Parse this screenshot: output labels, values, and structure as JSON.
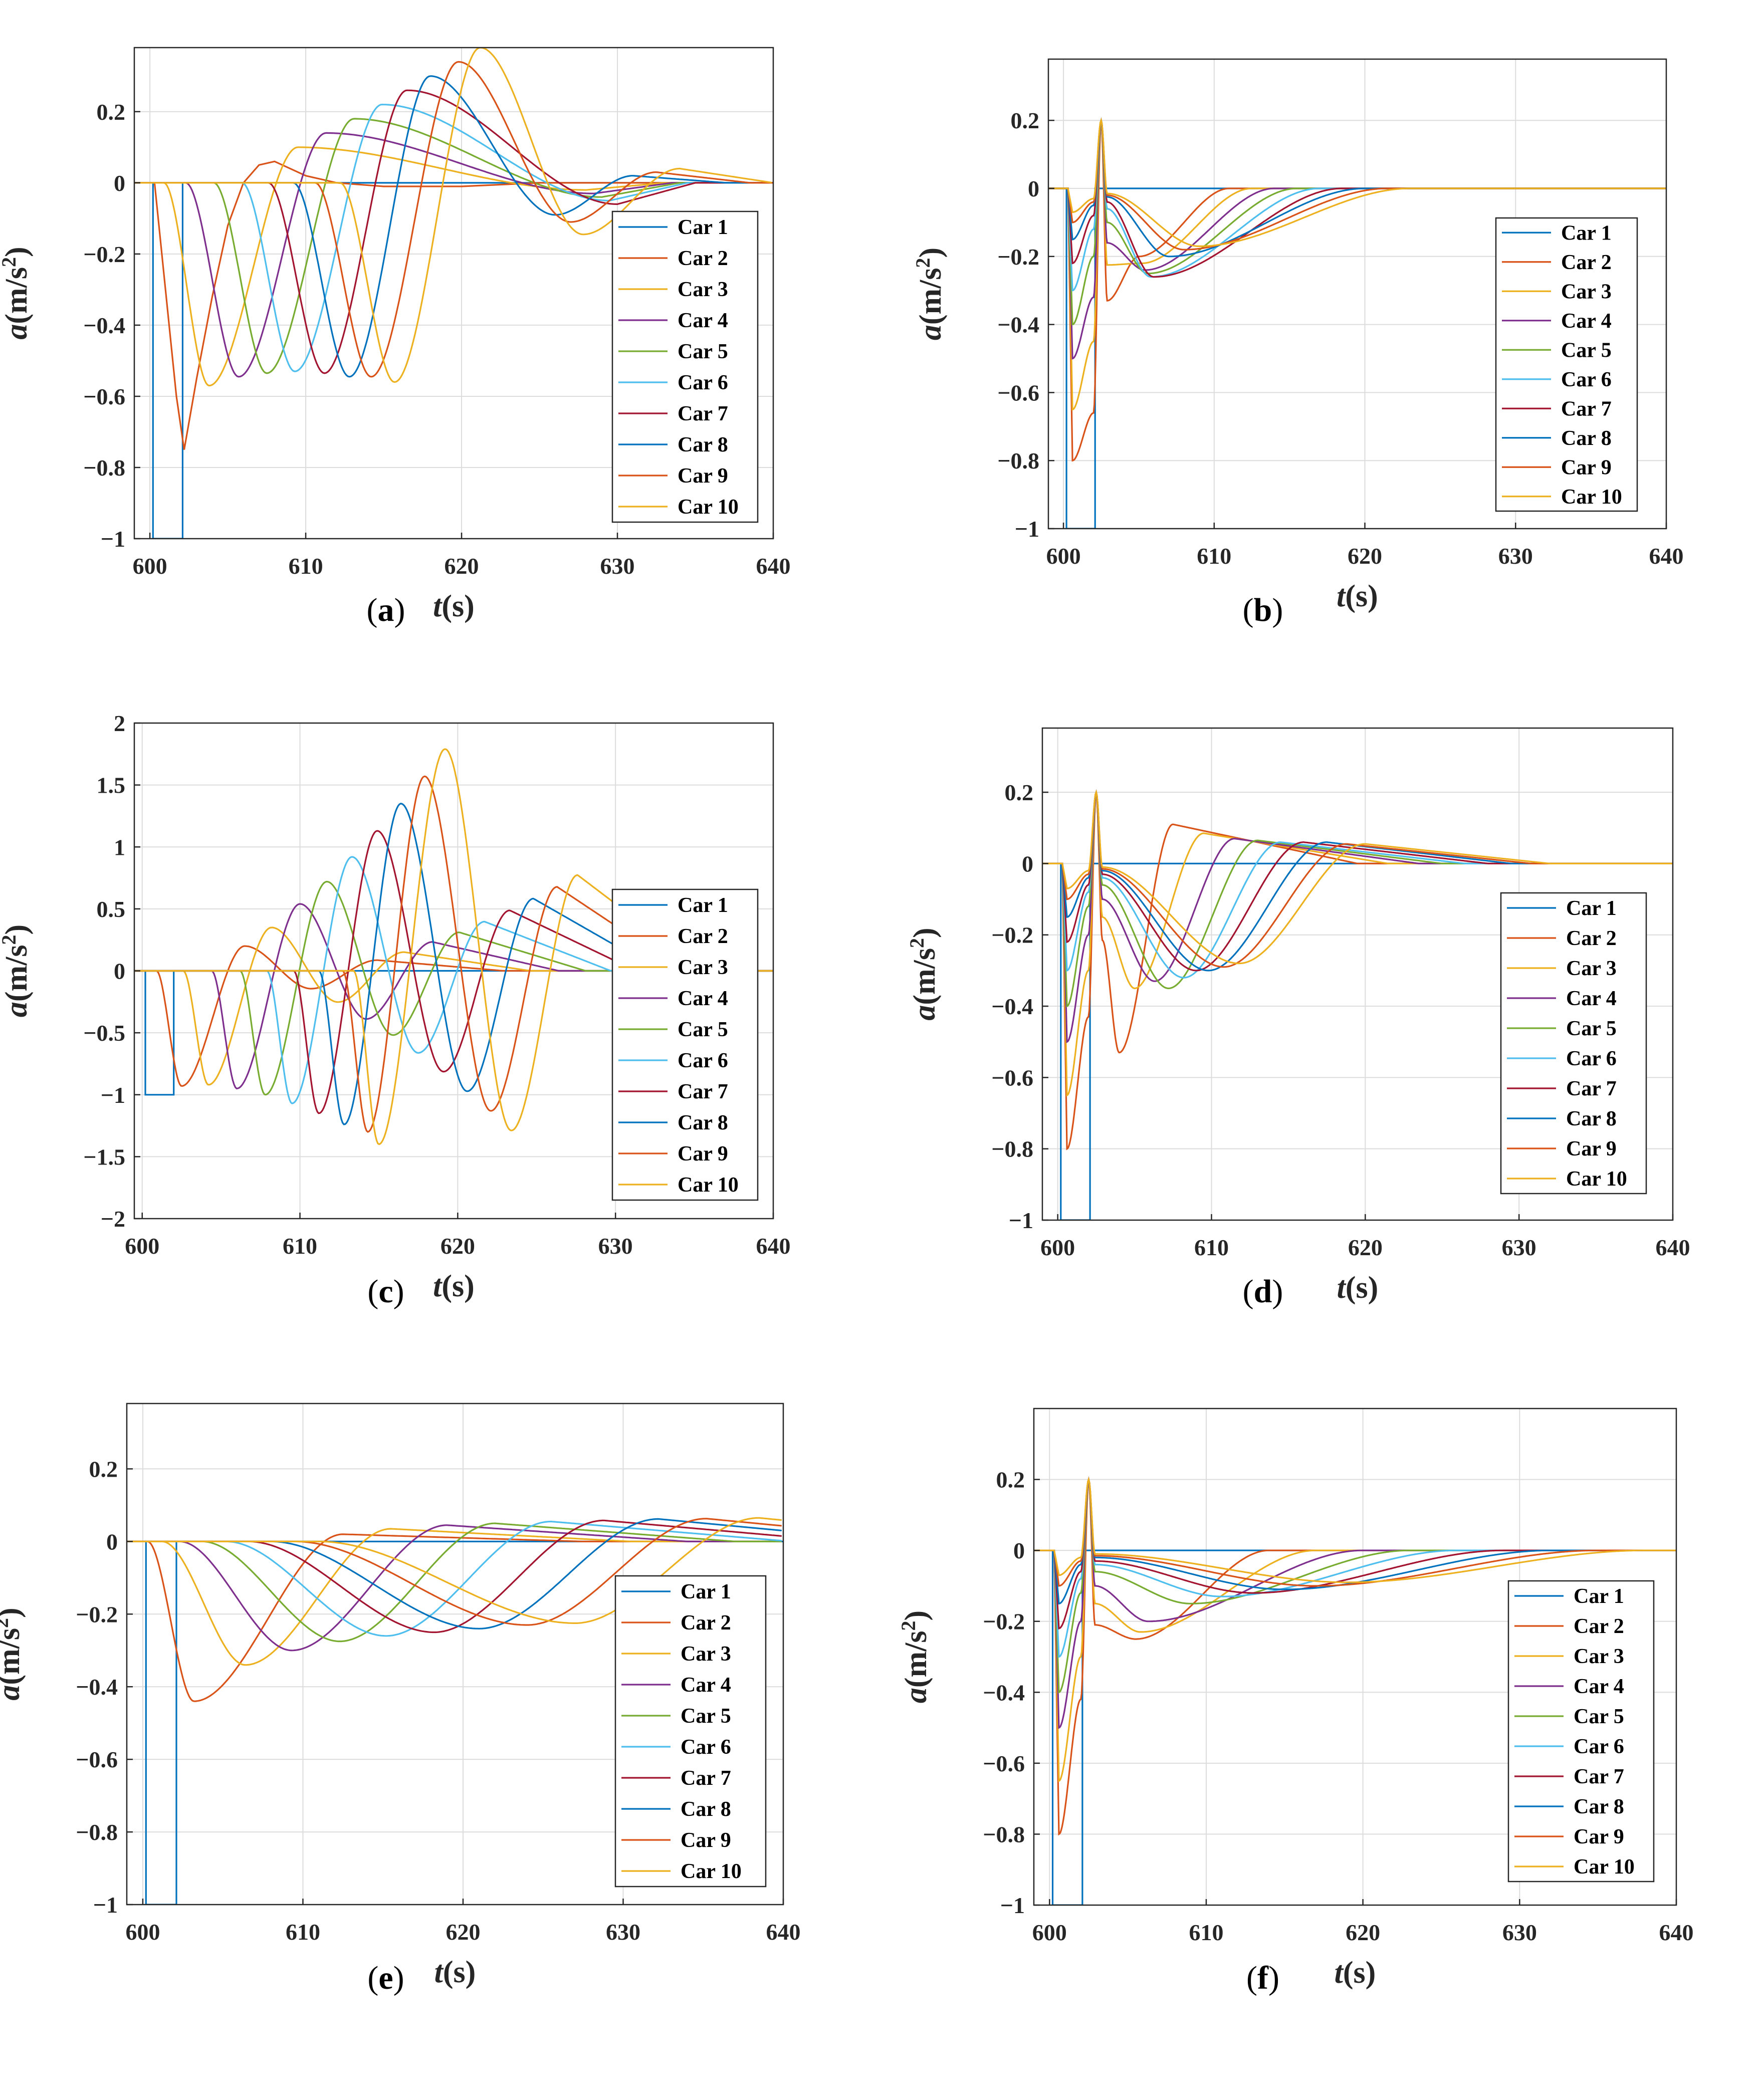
{
  "xlabel_t": "t",
  "xlabel_unit": "(s)",
  "ylabel_a": "a",
  "ylabel_unit": "(m/s",
  "ylabel_sup": "2",
  "ylabel_close": ")",
  "legend_labels": [
    "Car 1",
    "Car 2",
    "Car 3",
    "Car 4",
    "Car 5",
    "Car 6",
    "Car 7",
    "Car 8",
    "Car 9",
    "Car 10"
  ],
  "colors": [
    "#0072BD",
    "#D95319",
    "#EDB120",
    "#7E2F8E",
    "#77AC30",
    "#4DBEEE",
    "#A2142F",
    "#0072BD",
    "#D95319",
    "#EDB120"
  ],
  "chart_data": [
    {
      "id": "a",
      "caption": "a",
      "type": "line",
      "xlim": [
        599,
        640
      ],
      "ylim": [
        -1,
        0.38
      ],
      "xticks": [
        600,
        610,
        620,
        630,
        640
      ],
      "yticks": [
        -1,
        -0.8,
        -0.6,
        -0.4,
        -0.2,
        0,
        0.2
      ],
      "yticklabels": [
        "−1",
        "−0.8",
        "−0.6",
        "−0.4",
        "−0.2",
        "0",
        "0.2"
      ],
      "series": [
        {
          "name": "Car 1",
          "x": [
            599,
            600.2,
            600.2,
            602.1,
            602.1,
            640
          ],
          "y": [
            0,
            0,
            -1,
            -1,
            0,
            0
          ]
        },
        {
          "name": "Car 2",
          "x": [
            599,
            600.3,
            601,
            601.7,
            602.2,
            603,
            604,
            605,
            606,
            607,
            608,
            609,
            610,
            612,
            615,
            620,
            625,
            630,
            640
          ],
          "y": [
            0,
            0,
            -0.3,
            -0.6,
            -0.75,
            -0.55,
            -0.32,
            -0.12,
            0.0,
            0.05,
            0.06,
            0.04,
            0.02,
            0.0,
            -0.01,
            -0.01,
            0,
            0,
            0
          ]
        },
        {
          "name": "Car 3",
          "peak": [
            609.5,
            0.1
          ],
          "trough": [
            603.8,
            -0.57
          ],
          "start": 600.9,
          "late": [
            628,
            -0.02
          ]
        },
        {
          "name": "Car 4",
          "peak": [
            611.3,
            0.14
          ],
          "trough": [
            605.7,
            -0.545
          ],
          "start": 602.3,
          "late": [
            628.5,
            -0.03
          ]
        },
        {
          "name": "Car 5",
          "peak": [
            613.1,
            0.18
          ],
          "trough": [
            607.5,
            -0.535
          ],
          "start": 604.1,
          "late": [
            629,
            -0.04
          ]
        },
        {
          "name": "Car 6",
          "peak": [
            614.9,
            0.22
          ],
          "trough": [
            609.3,
            -0.53
          ],
          "start": 605.9,
          "late": [
            629.5,
            -0.05
          ]
        },
        {
          "name": "Car 7",
          "peak": [
            616.5,
            0.26
          ],
          "trough": [
            611.2,
            -0.535
          ],
          "start": 607.6,
          "late": [
            630,
            -0.06
          ]
        },
        {
          "name": "Car 8",
          "peak": [
            618,
            0.3
          ],
          "trough": [
            612.8,
            -0.545
          ],
          "start": 609.2,
          "late": [
            626,
            -0.09
          ],
          "tail": [
            631,
            0.02
          ]
        },
        {
          "name": "Car 9",
          "peak": [
            619.8,
            0.34
          ],
          "trough": [
            614.2,
            -0.545
          ],
          "start": 610.6,
          "late": [
            627,
            -0.11
          ],
          "tail": [
            632.5,
            0.03
          ]
        },
        {
          "name": "Car 10",
          "peak": [
            621.2,
            0.38
          ],
          "trough": [
            615.7,
            -0.56
          ],
          "start": 612.2,
          "late": [
            627.8,
            -0.145
          ],
          "tail": [
            634,
            0.04
          ]
        }
      ]
    },
    {
      "id": "b",
      "caption": "b",
      "type": "line",
      "xlim": [
        599,
        640
      ],
      "ylim": [
        -1,
        0.38
      ],
      "xticks": [
        600,
        610,
        620,
        630,
        640
      ],
      "yticks": [
        -1,
        -0.8,
        -0.6,
        -0.4,
        -0.2,
        0,
        0.2
      ],
      "yticklabels": [
        "−1",
        "−0.8",
        "−0.6",
        "−0.4",
        "−0.2",
        "0",
        "0.2"
      ],
      "series": [
        {
          "name": "Car 1",
          "x": [
            599,
            600.2,
            600.2,
            602.1,
            602.1,
            640
          ],
          "y": [
            0,
            0,
            -1,
            -1,
            0,
            0
          ]
        },
        {
          "name": "Car 2",
          "dip": -0.8,
          "mid": -0.66,
          "post": -0.2,
          "post_t": 605,
          "settle": 611
        },
        {
          "name": "Car 3",
          "dip": -0.65,
          "mid": -0.45,
          "post": -0.22,
          "post_t": 605.2,
          "settle": 612.5
        },
        {
          "name": "Car 4",
          "dip": -0.5,
          "mid": -0.32,
          "post": -0.24,
          "post_t": 605.4,
          "settle": 614
        },
        {
          "name": "Car 5",
          "dip": -0.4,
          "mid": -0.2,
          "post": -0.25,
          "post_t": 605.6,
          "settle": 615.5
        },
        {
          "name": "Car 6",
          "dip": -0.3,
          "mid": -0.12,
          "post": -0.26,
          "post_t": 605.8,
          "settle": 617
        },
        {
          "name": "Car 7",
          "dip": -0.22,
          "mid": -0.08,
          "post": -0.26,
          "post_t": 606,
          "settle": 618.5
        },
        {
          "name": "Car 8",
          "dip": -0.15,
          "mid": -0.05,
          "post": -0.2,
          "post_t": 607,
          "settle": 620
        },
        {
          "name": "Car 9",
          "dip": -0.1,
          "mid": -0.04,
          "post": -0.18,
          "post_t": 608,
          "settle": 621.5
        },
        {
          "name": "Car 10",
          "dip": -0.07,
          "mid": -0.03,
          "post": -0.17,
          "post_t": 609,
          "settle": 623
        }
      ]
    },
    {
      "id": "c",
      "caption": "c",
      "type": "line",
      "xlim": [
        599.5,
        640
      ],
      "ylim": [
        -2,
        2
      ],
      "xticks": [
        600,
        610,
        620,
        630,
        640
      ],
      "yticks": [
        -2,
        -1.5,
        -1,
        -0.5,
        0,
        0.5,
        1,
        1.5,
        2
      ],
      "yticklabels": [
        "−2",
        "−1.5",
        "−1",
        "−0.5",
        "0",
        "0.5",
        "1",
        "1.5",
        "2"
      ],
      "series": [
        {
          "name": "Car 1",
          "x": [
            599.5,
            600.2,
            600.2,
            602,
            602,
            640
          ],
          "y": [
            0,
            0,
            -1,
            -1,
            0,
            0
          ]
        },
        {
          "name": "Car 2",
          "trough": [
            602.5,
            -0.93
          ],
          "peak": [
            606.5,
            0.2
          ]
        },
        {
          "name": "Car 3",
          "trough": [
            604.2,
            -0.92
          ],
          "peak": [
            608.2,
            0.35
          ]
        },
        {
          "name": "Car 4",
          "trough": [
            606,
            -0.95
          ],
          "peak": [
            610,
            0.54
          ]
        },
        {
          "name": "Car 5",
          "trough": [
            607.8,
            -1.0
          ],
          "peak": [
            611.7,
            0.72
          ]
        },
        {
          "name": "Car 6",
          "trough": [
            609.5,
            -1.07
          ],
          "peak": [
            613.3,
            0.92
          ]
        },
        {
          "name": "Car 7",
          "trough": [
            611.2,
            -1.15
          ],
          "peak": [
            614.9,
            1.13
          ]
        },
        {
          "name": "Car 8",
          "trough": [
            612.8,
            -1.24
          ],
          "peak": [
            616.4,
            1.35
          ]
        },
        {
          "name": "Car 9",
          "trough": [
            614.3,
            -1.3
          ],
          "peak": [
            617.9,
            1.57
          ]
        },
        {
          "name": "Car 10",
          "trough": [
            615,
            -1.4
          ],
          "peak": [
            619.2,
            1.79
          ]
        }
      ]
    },
    {
      "id": "d",
      "caption": "d",
      "type": "line",
      "xlim": [
        599,
        640
      ],
      "ylim": [
        -1,
        0.38
      ],
      "xticks": [
        600,
        610,
        620,
        630,
        640
      ],
      "yticks": [
        -1,
        -0.8,
        -0.6,
        -0.4,
        -0.2,
        0,
        0.2
      ],
      "yticklabels": [
        "−1",
        "−0.8",
        "−0.6",
        "−0.4",
        "−0.2",
        "0",
        "0.2"
      ],
      "series": [
        {
          "name": "Car 1",
          "x": [
            599,
            600.2,
            600.2,
            602.1,
            602.1,
            640
          ],
          "y": [
            0,
            0,
            -1,
            -1,
            0,
            0
          ]
        },
        {
          "name": "Car 2",
          "dip": -0.8,
          "mid": -0.43,
          "post": -0.53,
          "post_t": 604,
          "over": 0.11,
          "over_t": 607.5
        },
        {
          "name": "Car 3",
          "dip": -0.65,
          "mid": -0.3,
          "post": -0.35,
          "post_t": 605,
          "over": 0.085,
          "over_t": 609.5
        },
        {
          "name": "Car 4",
          "dip": -0.5,
          "mid": -0.2,
          "post": -0.33,
          "post_t": 606.3,
          "over": 0.07,
          "over_t": 611.5
        },
        {
          "name": "Car 5",
          "dip": -0.4,
          "mid": -0.12,
          "post": -0.35,
          "post_t": 607.2,
          "over": 0.065,
          "over_t": 613
        },
        {
          "name": "Car 6",
          "dip": -0.3,
          "mid": -0.08,
          "post": -0.32,
          "post_t": 608.2,
          "over": 0.06,
          "over_t": 614.5
        },
        {
          "name": "Car 7",
          "dip": -0.22,
          "mid": -0.06,
          "post": -0.3,
          "post_t": 609,
          "over": 0.06,
          "over_t": 616
        },
        {
          "name": "Car 8",
          "dip": -0.15,
          "mid": -0.04,
          "post": -0.3,
          "post_t": 609.8,
          "over": 0.06,
          "over_t": 617.5
        },
        {
          "name": "Car 9",
          "dip": -0.1,
          "mid": -0.03,
          "post": -0.29,
          "post_t": 610.8,
          "over": 0.055,
          "over_t": 618.8
        },
        {
          "name": "Car 10",
          "dip": -0.07,
          "mid": -0.02,
          "post": -0.28,
          "post_t": 611.8,
          "over": 0.055,
          "over_t": 620
        }
      ]
    },
    {
      "id": "e",
      "caption": "e",
      "type": "line",
      "xlim": [
        599,
        640
      ],
      "ylim": [
        -1,
        0.38
      ],
      "xticks": [
        600,
        610,
        620,
        630,
        640
      ],
      "yticks": [
        -1,
        -0.8,
        -0.6,
        -0.4,
        -0.2,
        0,
        0.2
      ],
      "yticklabels": [
        "−1",
        "−0.8",
        "−0.6",
        "−0.4",
        "−0.2",
        "0",
        "0.2"
      ],
      "series": [
        {
          "name": "Car 1",
          "x": [
            599,
            600.2,
            600.2,
            602.1,
            602.1,
            640
          ],
          "y": [
            0,
            0,
            -1,
            -1,
            0,
            0
          ]
        },
        {
          "name": "Car 2",
          "start": 600.3,
          "trough": [
            603.2,
            -0.44
          ],
          "peak": [
            612.5,
            0.02
          ]
        },
        {
          "name": "Car 3",
          "start": 601.2,
          "trough": [
            606.4,
            -0.34
          ],
          "peak": [
            615.5,
            0.035
          ]
        },
        {
          "name": "Car 4",
          "start": 602.3,
          "trough": [
            609.3,
            -0.3
          ],
          "peak": [
            619,
            0.045
          ]
        },
        {
          "name": "Car 5",
          "start": 603.7,
          "trough": [
            612.3,
            -0.275
          ],
          "peak": [
            622,
            0.05
          ]
        },
        {
          "name": "Car 6",
          "start": 605.2,
          "trough": [
            615.2,
            -0.26
          ],
          "peak": [
            625.5,
            0.055
          ]
        },
        {
          "name": "Car 7",
          "start": 606.6,
          "trough": [
            618.2,
            -0.25
          ],
          "peak": [
            628.8,
            0.058
          ]
        },
        {
          "name": "Car 8",
          "start": 608,
          "trough": [
            621,
            -0.24
          ],
          "peak": [
            632.2,
            0.062
          ]
        },
        {
          "name": "Car 9",
          "start": 609.5,
          "trough": [
            624,
            -0.23
          ],
          "peak": [
            635.2,
            0.063
          ]
        },
        {
          "name": "Car 10",
          "start": 611,
          "trough": [
            627,
            -0.225
          ],
          "peak": [
            638.5,
            0.065
          ]
        }
      ]
    },
    {
      "id": "f",
      "caption": "f",
      "type": "line",
      "xlim": [
        599,
        640
      ],
      "ylim": [
        -1,
        0.4
      ],
      "xticks": [
        600,
        610,
        620,
        630,
        640
      ],
      "yticks": [
        -1,
        -0.8,
        -0.6,
        -0.4,
        -0.2,
        0,
        0.2
      ],
      "yticklabels": [
        "−1",
        "−0.8",
        "−0.6",
        "−0.4",
        "−0.2",
        "0",
        "0.2"
      ],
      "series": [
        {
          "name": "Car 1",
          "x": [
            599,
            600.2,
            600.2,
            602.1,
            602.1,
            640
          ],
          "y": [
            0,
            0,
            -1,
            -1,
            0,
            0
          ]
        },
        {
          "name": "Car 2",
          "dip": -0.8,
          "mid": -0.42,
          "post": -0.25,
          "post_t": 605.5,
          "settle": 614
        },
        {
          "name": "Car 3",
          "dip": -0.65,
          "mid": -0.3,
          "post": -0.23,
          "post_t": 605.8,
          "settle": 617
        },
        {
          "name": "Car 4",
          "dip": -0.5,
          "mid": -0.2,
          "post": -0.2,
          "post_t": 606.3,
          "settle": 620
        },
        {
          "name": "Car 5",
          "dip": -0.4,
          "mid": -0.12,
          "post": -0.15,
          "post_t": 609,
          "settle": 623
        },
        {
          "name": "Car 6",
          "dip": -0.3,
          "mid": -0.08,
          "post": -0.13,
          "post_t": 611,
          "settle": 626
        },
        {
          "name": "Car 7",
          "dip": -0.22,
          "mid": -0.06,
          "post": -0.12,
          "post_t": 613,
          "settle": 629
        },
        {
          "name": "Car 8",
          "dip": -0.15,
          "mid": -0.04,
          "post": -0.11,
          "post_t": 615,
          "settle": 632
        },
        {
          "name": "Car 9",
          "dip": -0.1,
          "mid": -0.03,
          "post": -0.1,
          "post_t": 617,
          "settle": 635
        },
        {
          "name": "Car 10",
          "dip": -0.07,
          "mid": -0.02,
          "post": -0.09,
          "post_t": 619,
          "settle": 638
        }
      ]
    }
  ]
}
